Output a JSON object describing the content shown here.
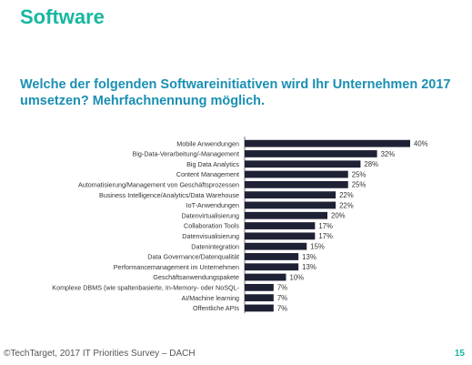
{
  "slide": {
    "title": "Software",
    "question": "Welche der folgenden Softwareinitiativen wird Ihr Unternehmen 2017 umsetzen? Mehrfachnennung möglich.",
    "source": "©TechTarget, 2017 IT Priorities Survey – DACH",
    "page_number": "15"
  },
  "colors": {
    "title": "#17b7a0",
    "question": "#1a8fb3",
    "bar": "#1f2235"
  },
  "chart_data": {
    "type": "bar",
    "orientation": "horizontal",
    "categories": [
      "Mobile Anwendungen",
      "Big-Data-Verarbeitung/-Management",
      "Big Data Analytics",
      "Content Management",
      "Automatisierung/Management von Geschäftsprozessen",
      "Business Intelligence/Analytics/Data Warehouse",
      "IoT-Anwendungen",
      "Datenvirtualisierung",
      "Collaboration Tools",
      "Datenvisualisierung",
      "Datenintegration",
      "Data Governance/Datenqualität",
      "Performancemanagement im Unternehmen",
      "Geschäftsanwendungspakete",
      "Komplexe DBMS (wie spaltenbasierte, In-Memory- oder NoSQL-",
      "AI/Machine learning",
      "Offentliche APIs"
    ],
    "values": [
      40,
      32,
      28,
      25,
      25,
      22,
      22,
      20,
      17,
      17,
      15,
      13,
      13,
      10,
      7,
      7,
      7
    ],
    "value_labels": [
      "40%",
      "32%",
      "28%",
      "25%",
      "25%",
      "22%",
      "22%",
      "20%",
      "17%",
      "17%",
      "15%",
      "13%",
      "13%",
      "10%",
      "7%",
      "7%",
      "7%"
    ],
    "xlim": [
      0,
      40
    ],
    "grid": false,
    "legend": "none"
  }
}
